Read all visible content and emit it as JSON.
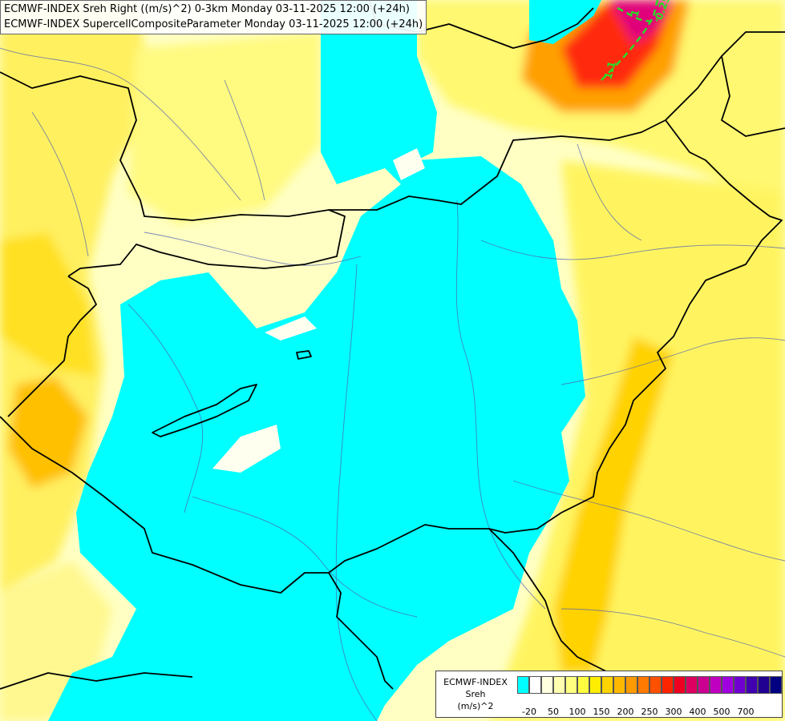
{
  "title_lines": [
    "ECMWF-INDEX Sreh Right ((m/s)^2) 0-3km Monday 03-11-2025 12:00 (+24h)",
    "ECMWF-INDEX SupercellCompositeParameter Monday 03-11-2025 12:00 (+24h)"
  ],
  "legend": {
    "title": "ECMWF-INDEX",
    "name": "Sreh",
    "unit": "(m/s)^2",
    "tick_labels": [
      "-20",
      "50",
      "100",
      "150",
      "200",
      "250",
      "300",
      "400",
      "500",
      "700"
    ],
    "swatch_colors": [
      "#00ffff",
      "#ffffff",
      "#ffffe0",
      "#ffffb0",
      "#ffff80",
      "#ffff40",
      "#ffee00",
      "#ffd400",
      "#ffb800",
      "#ff9a00",
      "#ff7a00",
      "#ff5000",
      "#ff2400",
      "#ee0020",
      "#dd0060",
      "#cc0090",
      "#c000c0",
      "#a000e0",
      "#7000d0",
      "#4000b0",
      "#200090",
      "#000080"
    ]
  },
  "contour_labels": [
    "1",
    "0.25",
    "1.1"
  ],
  "colors": {
    "cyan": "#00ffff",
    "pale": "#ffffc8",
    "yellow": "#ffff50",
    "gold": "#ffe000",
    "orange": "#ffb000",
    "red": "#ff2020",
    "magenta": "#e0008c",
    "contour": "#28dc28"
  }
}
